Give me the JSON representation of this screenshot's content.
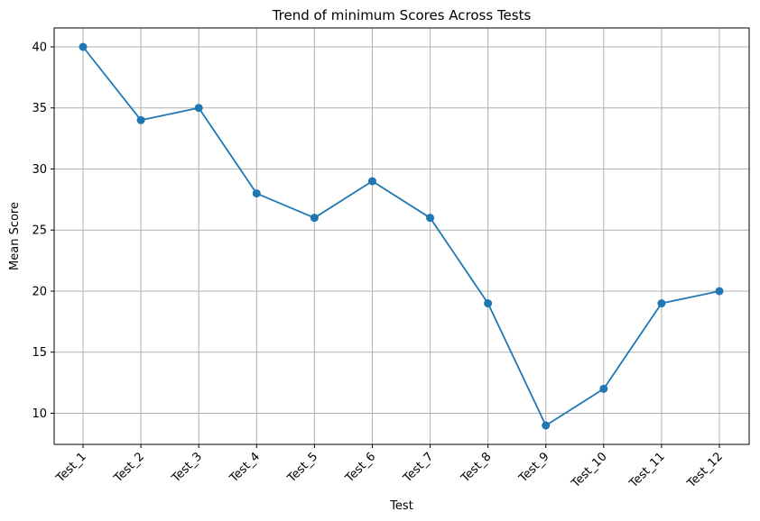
{
  "chart_data": {
    "type": "line",
    "title": "Trend of minimum Scores Across Tests",
    "xlabel": "Test",
    "ylabel": "Mean Score",
    "categories": [
      "Test_1",
      "Test_2",
      "Test_3",
      "Test_4",
      "Test_5",
      "Test_6",
      "Test_7",
      "Test_8",
      "Test_9",
      "Test_10",
      "Test_11",
      "Test_12"
    ],
    "series": [
      {
        "values": [
          40,
          34,
          35,
          28,
          26,
          29,
          26,
          19,
          9,
          12,
          19,
          20
        ],
        "color": "#1f77b4",
        "marker": "circle"
      }
    ],
    "ylim": [
      7.45,
      41.55
    ],
    "yticks": [
      10,
      15,
      20,
      25,
      30,
      35,
      40
    ],
    "grid": true,
    "x_tick_rotation": 45
  }
}
